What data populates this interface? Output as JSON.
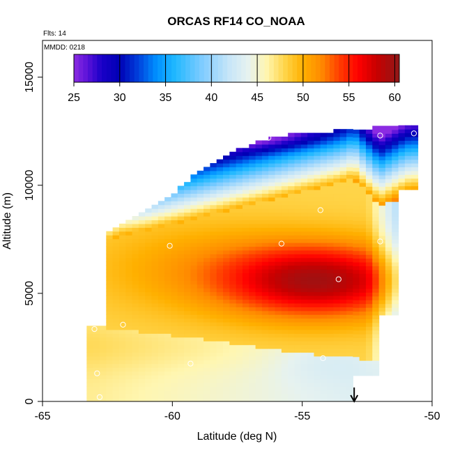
{
  "chart_data": {
    "type": "heatmap",
    "title": "ORCAS RF14 CO_NOAA",
    "subtitle_flights": "Flts: 14",
    "date_label": "MMDD: 0218",
    "xlabel": "Latitude (deg N)",
    "ylabel": "Altitude (m)",
    "xlim": [
      -65,
      -50
    ],
    "ylim": [
      0,
      16700
    ],
    "x_ticks": [
      -65,
      -60,
      -55,
      -50
    ],
    "x_tick_labels": [
      "-65",
      "-60",
      "-55",
      "-50"
    ],
    "y_ticks": [
      0,
      5000,
      10000,
      15000
    ],
    "y_tick_labels": [
      "0",
      "5000",
      "10000",
      "15000"
    ],
    "colorbar": {
      "range": [
        25,
        60.5
      ],
      "ticks": [
        25,
        30,
        35,
        40,
        45,
        50,
        55,
        60
      ],
      "tick_labels": [
        "25",
        "30",
        "35",
        "40",
        "45",
        "50",
        "55",
        "60"
      ],
      "placement": "top",
      "colors": [
        {
          "v": 25,
          "c": "#8B2BE2"
        },
        {
          "v": 26.5,
          "c": "#5a12d8"
        },
        {
          "v": 28,
          "c": "#1a00c8"
        },
        {
          "v": 30,
          "c": "#0000b4"
        },
        {
          "v": 32,
          "c": "#0040dc"
        },
        {
          "v": 34,
          "c": "#0090ff"
        },
        {
          "v": 36,
          "c": "#20b8ff"
        },
        {
          "v": 39,
          "c": "#80ccff"
        },
        {
          "v": 42,
          "c": "#c8e6f8"
        },
        {
          "v": 44,
          "c": "#e6f2f0"
        },
        {
          "v": 46,
          "c": "#fff6b0"
        },
        {
          "v": 48,
          "c": "#ffd54a"
        },
        {
          "v": 50,
          "c": "#ffb000"
        },
        {
          "v": 52,
          "c": "#ff8a00"
        },
        {
          "v": 54,
          "c": "#ff3c00"
        },
        {
          "v": 56,
          "c": "#ff0000"
        },
        {
          "v": 58,
          "c": "#c80000"
        },
        {
          "v": 60.5,
          "c": "#901818"
        }
      ]
    },
    "arrow_marker": {
      "latitude": -53,
      "direction": "down"
    },
    "curtain_slopes": [
      {
        "lat": -63.0,
        "b1": 3500,
        "b2": 7000,
        "top": 6500
      },
      {
        "lat": -62.7,
        "b1": 3450,
        "b2": 7300,
        "top": 7700
      },
      {
        "lat": -62.0,
        "b1": 3350,
        "b2": 7700,
        "top": 8000
      },
      {
        "lat": -61.0,
        "b1": 3200,
        "b2": 7900,
        "top": 8700
      },
      {
        "lat": -60.0,
        "b1": 3050,
        "b2": 8200,
        "top": 9500
      },
      {
        "lat": -59.0,
        "b1": 2900,
        "b2": 8500,
        "top": 10500
      },
      {
        "lat": -58.0,
        "b1": 2750,
        "b2": 8800,
        "top": 11300
      },
      {
        "lat": -57.0,
        "b1": 2550,
        "b2": 9100,
        "top": 11800
      },
      {
        "lat": -56.0,
        "b1": 2400,
        "b2": 9400,
        "top": 12200
      },
      {
        "lat": -55.0,
        "b1": 2250,
        "b2": 9700,
        "top": 12300
      },
      {
        "lat": -54.0,
        "b1": 2100,
        "b2": 10000,
        "top": 12400
      },
      {
        "lat": -53.0,
        "b1": 2000,
        "b2": 10300,
        "top": 12500
      },
      {
        "lat": -52.0,
        "b1": 1900,
        "b2": 9000,
        "top": 12600
      },
      {
        "lat": -51.0,
        "b1": 1800,
        "b2": 9500,
        "top": 12700
      }
    ],
    "profile_points": [
      {
        "lat": -56.3,
        "alt": 12200
      },
      {
        "lat": -52.0,
        "alt": 12300
      },
      {
        "lat": -50.7,
        "alt": 12400
      },
      {
        "lat": -54.3,
        "alt": 8850
      },
      {
        "lat": -62.7,
        "alt": 7600
      },
      {
        "lat": -60.1,
        "alt": 7200
      },
      {
        "lat": -55.8,
        "alt": 7300
      },
      {
        "lat": -52.0,
        "alt": 7400
      },
      {
        "lat": -53.6,
        "alt": 5650
      },
      {
        "lat": -61.9,
        "alt": 3550
      },
      {
        "lat": -63.0,
        "alt": 3350
      },
      {
        "lat": -59.3,
        "alt": 1750
      },
      {
        "lat": -54.2,
        "alt": 2000
      },
      {
        "lat": -62.9,
        "alt": 1300
      },
      {
        "lat": -62.8,
        "alt": 200
      }
    ]
  }
}
